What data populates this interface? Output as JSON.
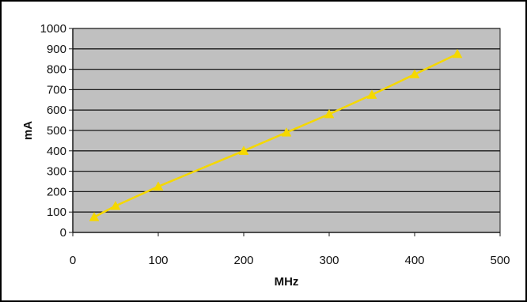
{
  "chart_data": {
    "type": "line",
    "title": "",
    "xlabel": "MHz",
    "ylabel": "mA",
    "xlim": [
      0,
      500
    ],
    "ylim": [
      0,
      1000
    ],
    "x_ticks": [
      "0",
      "100",
      "200",
      "300",
      "400",
      "500"
    ],
    "y_ticks": [
      "0",
      "100",
      "200",
      "300",
      "400",
      "500",
      "600",
      "700",
      "800",
      "900",
      "1000"
    ],
    "grid": "horizontal",
    "legend": "none",
    "marker": "triangle",
    "series": [
      {
        "x": [
          25,
          50,
          100,
          200,
          250,
          300,
          350,
          400,
          450
        ],
        "y": [
          75,
          130,
          225,
          400,
          490,
          580,
          675,
          775,
          875
        ]
      }
    ]
  },
  "colors": {
    "plot_background": "#c0c0c0",
    "grid": "#1a1a1a",
    "series": "#f5d800",
    "axis": "#1a1a1a"
  }
}
